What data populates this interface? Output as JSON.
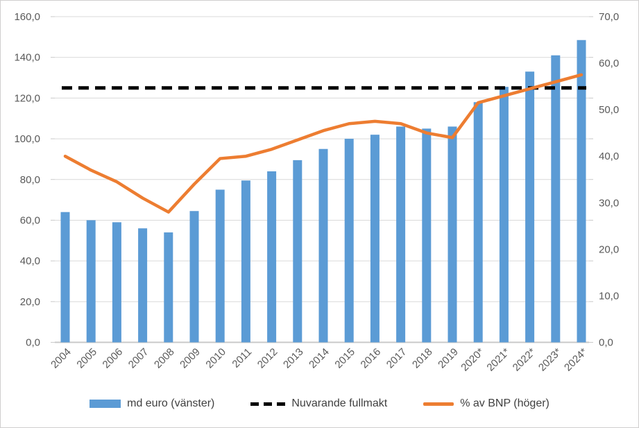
{
  "colors": {
    "bar": "#5B9BD5",
    "line": "#ED7D31",
    "dashed": "#000000",
    "gridline": "#D9D9D9",
    "axis_line": "#C9C9C9",
    "tick_text": "#595959",
    "legend_text": "#3f3f3f",
    "frame_border": "#d0cece"
  },
  "chart_data": {
    "type": "bar",
    "subtype": "combo-bar-line-dual-axis",
    "title": "",
    "xlabel": "",
    "ylabel_left": "md euro",
    "ylabel_right": "% av BNP",
    "grid": true,
    "legend_position": "bottom",
    "categories": [
      "2004",
      "2005",
      "2006",
      "2007",
      "2008",
      "2009",
      "2010",
      "2011",
      "2012",
      "2013",
      "2014",
      "2015",
      "2016",
      "2017",
      "2018",
      "2019",
      "2020*",
      "2021*",
      "2022*",
      "2023*",
      "2024*"
    ],
    "series": [
      {
        "name": "md euro (vänster)",
        "type": "bar",
        "axis": "left",
        "color": "#5B9BD5",
        "values": [
          64,
          60,
          59,
          56,
          54,
          64.5,
          75,
          79.5,
          84,
          89.5,
          95,
          100,
          102,
          106,
          105,
          106,
          118,
          125.5,
          133,
          141,
          148.5
        ]
      },
      {
        "name": "Nuvarande fullmakt",
        "type": "dashed-constant-line",
        "axis": "left",
        "color": "#000000",
        "constant_value": 125
      },
      {
        "name": "% av BNP (höger)",
        "type": "line",
        "axis": "right",
        "color": "#ED7D31",
        "values": [
          40,
          37,
          34.5,
          31,
          28,
          34,
          39.5,
          40,
          41.5,
          43.5,
          45.5,
          47,
          47.5,
          47,
          45,
          44,
          51.5,
          53,
          54.5,
          56,
          57.5
        ]
      }
    ],
    "left_axis": {
      "min": 0,
      "max": 160,
      "step": 20,
      "tick_labels": [
        "160,0",
        "140,0",
        "120,0",
        "100,0",
        "80,0",
        "60,0",
        "40,0",
        "20,0",
        "0,0"
      ]
    },
    "right_axis": {
      "min": 0,
      "max": 70,
      "step": 10,
      "tick_labels": [
        "70,0",
        "60,0",
        "50,0",
        "40,0",
        "30,0",
        "20,0",
        "10,0",
        "0,0"
      ]
    }
  },
  "legend": {
    "items": [
      {
        "label": "md euro (vänster)",
        "swatch": "bar"
      },
      {
        "label": "Nuvarande fullmakt",
        "swatch": "dashed"
      },
      {
        "label": "% av BNP (höger)",
        "swatch": "line"
      }
    ]
  }
}
